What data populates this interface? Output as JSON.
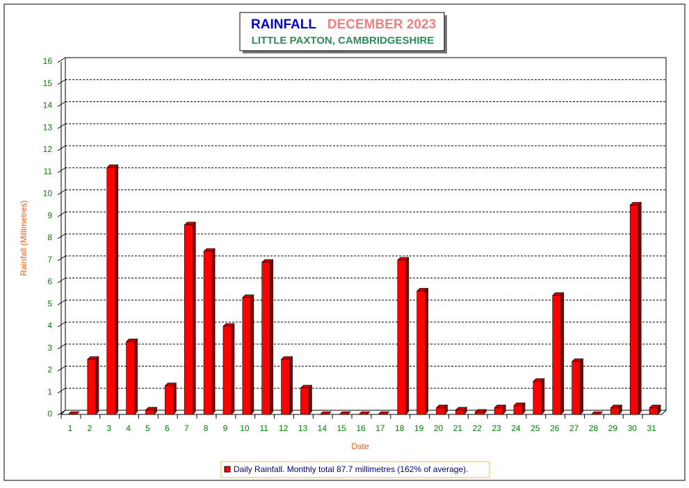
{
  "chart_data": {
    "type": "bar3d",
    "title": "RAINFALL",
    "title_period": "DECEMBER 2023",
    "subtitle": "LITTLE PAXTON, CAMBRIDGESHIRE",
    "y_label": "Rainfall  (Millimetres)",
    "x_label": "Date",
    "categories": [
      "1",
      "2",
      "3",
      "4",
      "5",
      "6",
      "7",
      "8",
      "9",
      "10",
      "11",
      "12",
      "13",
      "14",
      "15",
      "16",
      "17",
      "18",
      "19",
      "20",
      "21",
      "22",
      "23",
      "24",
      "25",
      "26",
      "27",
      "28",
      "29",
      "30",
      "31"
    ],
    "series": [
      {
        "name": "Daily Rainfall. Monthly total 87.7 millimetres (162% of average).",
        "color": "#ff0000",
        "values": [
          0,
          2.5,
          11.2,
          3.3,
          0.2,
          1.3,
          8.6,
          7.4,
          4.0,
          5.3,
          6.9,
          2.5,
          1.2,
          0,
          0,
          0,
          0,
          7.0,
          5.6,
          0.3,
          0.2,
          0.1,
          0.3,
          0.4,
          1.5,
          5.4,
          2.4,
          0,
          0.3,
          9.5,
          0.3
        ]
      }
    ],
    "ylim": [
      0,
      16
    ],
    "yticks": [
      0,
      1,
      2,
      3,
      4,
      5,
      6,
      7,
      8,
      9,
      10,
      11,
      12,
      13,
      14,
      15,
      16
    ],
    "grid": true,
    "legend": "bottom"
  }
}
